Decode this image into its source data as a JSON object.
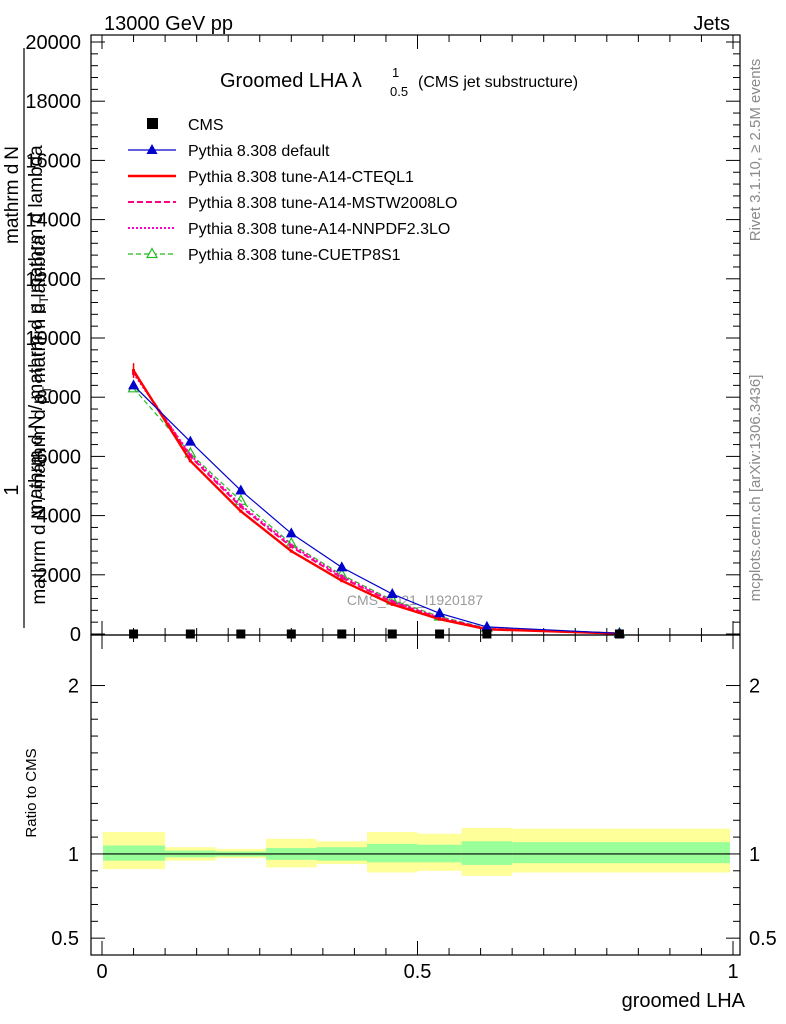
{
  "header": {
    "left": "13000 GeV pp",
    "right": "Jets"
  },
  "side_labels": {
    "top": "Rivet 3.1.10, ≥ 2.5M events",
    "bottom": "mcplots.cern.ch [arXiv:1306.3436]"
  },
  "watermark": "CMS_2021_I1920187",
  "colors": {
    "data": "#000000",
    "default": "#0000cc",
    "cteql1": "#ff0000",
    "mstw": "#ff0080",
    "nnpdf": "#ff00cc",
    "cuetp8s1": "#22bb22",
    "band_inner": "#99ff99",
    "band_outer": "#ffff99"
  },
  "chart_data": [
    {
      "type": "line",
      "title_main": "Groomed LHA",
      "title_symbol": "λ",
      "title_sup": "1",
      "title_sub": "0.5",
      "title_tail": "(CMS jet substructure)",
      "ylabel_num": "1",
      "ylabel_top": "mathrm d N / mathrm d p",
      "ylabel_top_sub": "T",
      "ylabel_top_tail": "mathrm d lambda",
      "ylabel_bot": "mathrm d N / mathrm d p",
      "ylabel_bot_sub": "T",
      "ylabel_bot_tail": "mathrm d lambda",
      "ylabel_prefix": "mathrm d",
      "ylabel_n": "N",
      "ylim": [
        0,
        20000
      ],
      "yticks": [
        0,
        2000,
        4000,
        6000,
        8000,
        10000,
        12000,
        14000,
        16000,
        18000,
        20000
      ],
      "ytick_labels": [
        "0",
        "2000",
        "4000",
        "6000",
        "8000",
        "10000",
        "12000",
        "14000",
        "16000",
        "18000",
        "20000"
      ],
      "xlim": [
        0,
        1
      ],
      "x": [
        0.05,
        0.14,
        0.22,
        0.3,
        0.38,
        0.46,
        0.535,
        0.61,
        0.82
      ],
      "series": [
        {
          "name": "CMS",
          "key": "data",
          "style": "square",
          "values": [
            0,
            0,
            0,
            0,
            0,
            0,
            0,
            0,
            0
          ]
        },
        {
          "name": "Pythia 8.308 default",
          "key": "default",
          "style": "solid-triangle",
          "values": [
            8400,
            6500,
            4850,
            3400,
            2250,
            1350,
            700,
            240,
            20
          ]
        },
        {
          "name": "Pythia 8.308 tune-A14-CTEQL1",
          "key": "cteql1",
          "style": "solid-thick",
          "values": [
            8900,
            5850,
            4150,
            2800,
            1800,
            1000,
            500,
            160,
            15
          ]
        },
        {
          "name": "Pythia 8.308 tune-A14-MSTW2008LO",
          "key": "mstw",
          "style": "dashed",
          "values": [
            8850,
            6000,
            4300,
            2950,
            1900,
            1080,
            540,
            170,
            15
          ]
        },
        {
          "name": "Pythia 8.308 tune-A14-NNPDF2.3LO",
          "key": "nnpdf",
          "style": "dotted",
          "values": [
            8800,
            6050,
            4350,
            3000,
            1950,
            1100,
            550,
            175,
            15
          ]
        },
        {
          "name": "Pythia 8.308 tune-CUETP8S1",
          "key": "cuetp8s1",
          "style": "dashed-open-triangle",
          "values": [
            8300,
            6100,
            4500,
            3050,
            2000,
            1150,
            590,
            200,
            18
          ]
        }
      ]
    },
    {
      "type": "area",
      "ylabel": "Ratio to CMS",
      "xlabel": "groomed LHA",
      "ylim": [
        0.4,
        2.3
      ],
      "yticks": [
        0.5,
        1,
        2
      ],
      "ytick_labels": [
        "0.5",
        "1",
        "2"
      ],
      "xticks": [
        0,
        0.5,
        1
      ],
      "xtick_labels": [
        "0",
        "0.5",
        "1"
      ],
      "bins": [
        [
          0,
          0.1
        ],
        [
          0.1,
          0.18
        ],
        [
          0.18,
          0.26
        ],
        [
          0.26,
          0.34
        ],
        [
          0.34,
          0.42
        ],
        [
          0.42,
          0.5
        ],
        [
          0.5,
          0.57
        ],
        [
          0.57,
          0.65
        ],
        [
          0.65,
          1.0
        ]
      ],
      "band_inner": [
        [
          0.96,
          1.05
        ],
        [
          0.98,
          1.02
        ],
        [
          0.985,
          1.015
        ],
        [
          0.965,
          1.035
        ],
        [
          0.96,
          1.04
        ],
        [
          0.95,
          1.06
        ],
        [
          0.95,
          1.055
        ],
        [
          0.935,
          1.075
        ],
        [
          0.945,
          1.07
        ]
      ],
      "band_outer": [
        [
          0.91,
          1.13
        ],
        [
          0.96,
          1.04
        ],
        [
          0.975,
          1.03
        ],
        [
          0.92,
          1.09
        ],
        [
          0.94,
          1.075
        ],
        [
          0.89,
          1.13
        ],
        [
          0.9,
          1.12
        ],
        [
          0.87,
          1.155
        ],
        [
          0.89,
          1.15
        ]
      ],
      "reference": 1
    }
  ]
}
